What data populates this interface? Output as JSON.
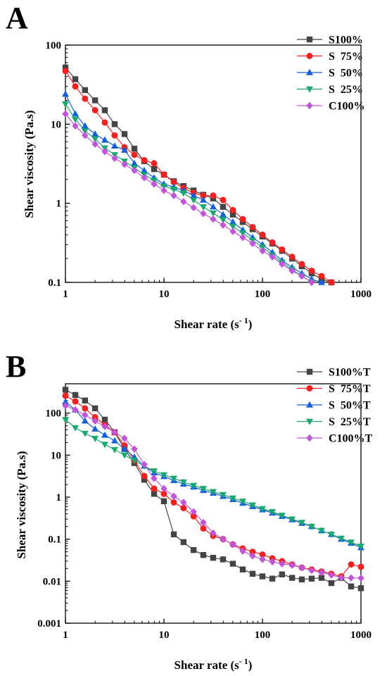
{
  "chart_data": [
    {
      "panel": "A",
      "type": "line",
      "xlabel": "Shear rate (s",
      "xlabel_exp": "- 1",
      "xlabel_close": ")",
      "ylabel": "Shear viscosity (Pa.s)",
      "xscale": "log",
      "yscale": "log",
      "xlim": [
        1,
        1000
      ],
      "ylim": [
        0.1,
        100
      ],
      "x_ticks": [
        {
          "v": 1,
          "label": "1"
        },
        {
          "v": 10,
          "label": "10"
        },
        {
          "v": 100,
          "label": "100"
        },
        {
          "v": 1000,
          "label": "1000"
        }
      ],
      "y_ticks": [
        {
          "v": 0.1,
          "label": "0.1"
        },
        {
          "v": 1,
          "label": "1"
        },
        {
          "v": 10,
          "label": "10"
        },
        {
          "v": 100,
          "label": "100"
        }
      ],
      "legend": "top-right",
      "series": [
        {
          "name": "S100%",
          "color": "#444444",
          "marker": "square",
          "x": [
            1,
            1.26,
            1.58,
            2,
            2.51,
            3.16,
            3.98,
            5.01,
            6.31,
            7.94,
            10,
            12.6,
            15.8,
            20,
            25.1,
            31.6,
            39.8,
            50.1,
            63.1,
            79.4,
            100,
            126,
            158,
            200,
            251,
            316,
            398,
            501
          ],
          "y": [
            52,
            37,
            27,
            20,
            15,
            10,
            7.5,
            4.9,
            3.4,
            2.7,
            2.3,
            1.9,
            1.65,
            1.45,
            1.28,
            1.15,
            0.9,
            0.72,
            0.58,
            0.47,
            0.38,
            0.31,
            0.25,
            0.2,
            0.16,
            0.13,
            0.11,
            0.1
          ]
        },
        {
          "name": "S  75%",
          "color": "#ee2222",
          "marker": "circle",
          "x": [
            1,
            1.26,
            1.58,
            2,
            2.51,
            3.16,
            3.98,
            5.01,
            6.31,
            7.94,
            10,
            12.6,
            15.8,
            20,
            25.1,
            31.6,
            39.8,
            50.1,
            63.1,
            79.4,
            100,
            126,
            158,
            200,
            251,
            316,
            398,
            501
          ],
          "y": [
            47,
            30,
            21,
            15,
            10.5,
            7.2,
            5.1,
            4.1,
            3.5,
            3.2,
            2.3,
            1.85,
            1.55,
            1.35,
            1.25,
            1.25,
            1.1,
            0.82,
            0.63,
            0.5,
            0.4,
            0.32,
            0.26,
            0.21,
            0.17,
            0.14,
            0.12,
            0.1
          ]
        },
        {
          "name": "S  50%",
          "color": "#1560d8",
          "marker": "triangle-up",
          "x": [
            1,
            1.26,
            1.58,
            2,
            2.51,
            3.16,
            3.98,
            5.01,
            6.31,
            7.94,
            10,
            12.6,
            15.8,
            20,
            25.1,
            31.6,
            39.8,
            50.1,
            63.1,
            79.4,
            100,
            126,
            158,
            200,
            251,
            316,
            398
          ],
          "y": [
            24,
            13.5,
            9.5,
            7.5,
            6.3,
            5.3,
            4.7,
            3.2,
            2.6,
            2.1,
            1.75,
            1.6,
            1.45,
            1.25,
            1.1,
            0.9,
            0.72,
            0.58,
            0.46,
            0.37,
            0.3,
            0.24,
            0.19,
            0.155,
            0.13,
            0.11,
            0.1
          ]
        },
        {
          "name": "S  25%",
          "color": "#1aa870",
          "marker": "triangle-down",
          "x": [
            1,
            1.26,
            1.58,
            2,
            2.51,
            3.16,
            3.98,
            5.01,
            6.31,
            7.94,
            10,
            12.6,
            15.8,
            20,
            25.1,
            31.6,
            39.8,
            50.1,
            63.1,
            79.4,
            100,
            126,
            158,
            200,
            251,
            316
          ],
          "y": [
            18,
            11.5,
            8.2,
            6.5,
            5,
            4.1,
            3.4,
            2.8,
            2.3,
            1.95,
            1.65,
            1.5,
            1.35,
            1.1,
            0.9,
            0.75,
            0.62,
            0.51,
            0.42,
            0.34,
            0.28,
            0.22,
            0.18,
            0.145,
            0.12,
            0.1
          ]
        },
        {
          "name": "C100%",
          "color": "#c055d8",
          "marker": "diamond",
          "x": [
            1,
            1.26,
            1.58,
            2,
            2.51,
            3.16,
            3.98,
            5.01,
            6.31,
            7.94,
            10,
            12.6,
            15.8,
            20,
            25.1,
            31.6,
            39.8,
            50.1,
            63.1,
            79.4,
            100,
            126,
            158,
            200,
            251,
            316
          ],
          "y": [
            13.5,
            9.5,
            7.2,
            5.6,
            4.5,
            3.7,
            3.1,
            2.6,
            2.1,
            1.75,
            1.45,
            1.25,
            1.05,
            0.88,
            0.74,
            0.63,
            0.53,
            0.44,
            0.37,
            0.31,
            0.25,
            0.21,
            0.17,
            0.14,
            0.12,
            0.1
          ]
        }
      ]
    },
    {
      "panel": "B",
      "type": "line",
      "xlabel": "Shear rate (s",
      "xlabel_exp": "- 1",
      "xlabel_close": ")",
      "ylabel": "Shear viscosity (Pa.s)",
      "xscale": "log",
      "yscale": "log",
      "xlim": [
        1,
        1000
      ],
      "ylim": [
        0.001,
        500
      ],
      "x_ticks": [
        {
          "v": 1,
          "label": "1"
        },
        {
          "v": 10,
          "label": "10"
        },
        {
          "v": 100,
          "label": "100"
        },
        {
          "v": 1000,
          "label": "1000"
        }
      ],
      "y_ticks": [
        {
          "v": 0.001,
          "label": "0.001"
        },
        {
          "v": 0.01,
          "label": "0.01"
        },
        {
          "v": 0.1,
          "label": "0.1"
        },
        {
          "v": 1,
          "label": "1"
        },
        {
          "v": 10,
          "label": "10"
        },
        {
          "v": 100,
          "label": "100"
        }
      ],
      "legend": "top-right",
      "series": [
        {
          "name": "S100%T",
          "color": "#444444",
          "marker": "square",
          "x": [
            1,
            1.26,
            1.58,
            2,
            2.51,
            3.16,
            3.98,
            5.01,
            6.31,
            7.94,
            10,
            12.6,
            15.8,
            20,
            25.1,
            31.6,
            39.8,
            50.1,
            63.1,
            79.4,
            100,
            126,
            158,
            200,
            251,
            316,
            398,
            501,
            631,
            794,
            1000
          ],
          "y": [
            360,
            270,
            200,
            130,
            70,
            35,
            14,
            6.5,
            2.6,
            1.2,
            0.8,
            0.13,
            0.085,
            0.055,
            0.042,
            0.036,
            0.033,
            0.026,
            0.019,
            0.015,
            0.013,
            0.0115,
            0.0145,
            0.012,
            0.011,
            0.0115,
            0.012,
            0.009,
            0.012,
            0.0075,
            0.0068
          ]
        },
        {
          "name": "S  75%T",
          "color": "#ee2222",
          "marker": "circle",
          "x": [
            1,
            1.26,
            1.58,
            2,
            2.51,
            3.16,
            3.98,
            5.01,
            6.31,
            7.94,
            10,
            12.6,
            15.8,
            20,
            25.1,
            31.6,
            39.8,
            50.1,
            63.1,
            79.4,
            100,
            126,
            158,
            200,
            251,
            316,
            398,
            501,
            631,
            794,
            1000
          ],
          "y": [
            260,
            190,
            130,
            80,
            52,
            35,
            17,
            7.5,
            3.2,
            1.6,
            1.2,
            0.75,
            0.55,
            0.35,
            0.18,
            0.12,
            0.1,
            0.075,
            0.06,
            0.05,
            0.043,
            0.035,
            0.03,
            0.025,
            0.021,
            0.019,
            0.017,
            0.015,
            0.013,
            0.025,
            0.022
          ]
        },
        {
          "name": "S  50%T",
          "color": "#1560d8",
          "marker": "triangle-up",
          "x": [
            1,
            1.26,
            1.58,
            2,
            2.51,
            3.16,
            3.98,
            5.01,
            6.31,
            7.94,
            10,
            12.6,
            15.8,
            20,
            25.1,
            31.6,
            39.8,
            50.1,
            63.1,
            79.4,
            100,
            126,
            158,
            200,
            251,
            316,
            398,
            501,
            631,
            794,
            1000
          ],
          "y": [
            185,
            120,
            65,
            42,
            30,
            22,
            14,
            9,
            5.5,
            3.8,
            3.1,
            2.5,
            2.05,
            1.75,
            1.45,
            1.25,
            1.05,
            0.88,
            0.72,
            0.6,
            0.5,
            0.42,
            0.35,
            0.29,
            0.24,
            0.2,
            0.16,
            0.13,
            0.1,
            0.08,
            0.063
          ]
        },
        {
          "name": "S  25%T",
          "color": "#1aa870",
          "marker": "triangle-down",
          "x": [
            1,
            1.26,
            1.58,
            2,
            2.51,
            3.16,
            3.98,
            5.01,
            6.31,
            7.94,
            10,
            12.6,
            15.8,
            20,
            25.1,
            31.6,
            39.8,
            50.1,
            63.1,
            79.4,
            100,
            126,
            158,
            200,
            251,
            316,
            398,
            501,
            631,
            794,
            1000
          ],
          "y": [
            70,
            45,
            33,
            25,
            18,
            13.5,
            10,
            7.5,
            5.5,
            4.2,
            3.4,
            2.8,
            2.3,
            1.9,
            1.6,
            1.35,
            1.15,
            0.95,
            0.8,
            0.65,
            0.53,
            0.45,
            0.37,
            0.3,
            0.25,
            0.2,
            0.16,
            0.13,
            0.105,
            0.085,
            0.068
          ]
        },
        {
          "name": "C100%T",
          "color": "#c055d8",
          "marker": "diamond",
          "x": [
            1,
            1.26,
            1.58,
            2,
            2.51,
            3.16,
            3.98,
            5.01,
            6.31,
            7.94,
            10,
            12.6,
            15.8,
            20,
            25.1,
            31.6,
            39.8,
            50.1,
            63.1,
            79.4,
            100,
            126,
            158,
            200,
            251,
            316,
            398,
            501,
            631,
            794,
            1000
          ],
          "y": [
            150,
            120,
            90,
            65,
            48,
            35,
            25,
            14,
            6,
            2.8,
            1.6,
            1.05,
            0.75,
            0.45,
            0.25,
            0.14,
            0.1,
            0.075,
            0.052,
            0.04,
            0.033,
            0.029,
            0.026,
            0.024,
            0.021,
            0.018,
            0.016,
            0.014,
            0.012,
            0.012,
            0.0118
          ]
        }
      ]
    }
  ]
}
